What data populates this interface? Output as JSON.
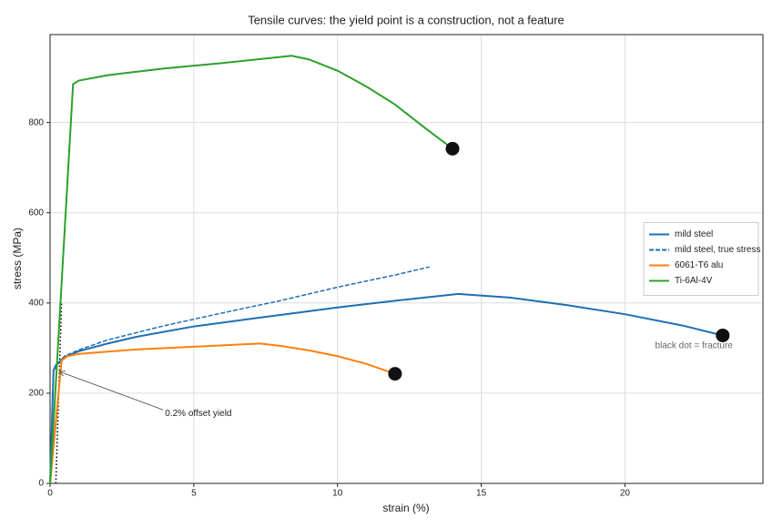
{
  "chart_data": {
    "type": "line",
    "title": "Tensile curves: the yield point is a construction, not a feature",
    "x_label": "strain (%)",
    "y_label": "stress (MPa)",
    "xlim": [
      0,
      24.8
    ],
    "ylim": [
      0,
      995
    ],
    "xticks": [
      0,
      5,
      10,
      15,
      20
    ],
    "yticks": [
      0,
      200,
      400,
      600,
      800
    ],
    "grid": true,
    "legend": "center right",
    "series": [
      {
        "name": "mild steel",
        "color": "#1f6fb2",
        "dash": false,
        "fracture_dot": true,
        "x": [
          0,
          0.12,
          0.2,
          0.5,
          1,
          2,
          3,
          5,
          7,
          10,
          12,
          14.2,
          16,
          18,
          20,
          22,
          23.4
        ],
        "values": [
          0,
          250,
          262,
          280,
          293,
          310,
          325,
          348,
          365,
          390,
          405,
          420,
          412,
          395,
          375,
          350,
          328
        ]
      },
      {
        "name": "mild steel, true stress",
        "color": "#1f6fb2",
        "dash": true,
        "fracture_dot": false,
        "x": [
          0,
          0.12,
          0.5,
          1,
          2,
          4,
          6,
          8,
          10,
          12,
          13.2
        ],
        "values": [
          0,
          250,
          282,
          296,
          318,
          350,
          378,
          405,
          435,
          462,
          480
        ]
      },
      {
        "name": "6061-T6 alu",
        "color": "#ff7f0e",
        "dash": false,
        "fracture_dot": true,
        "x": [
          0,
          0.4,
          0.6,
          1,
          3,
          5,
          7.3,
          8,
          9,
          10,
          11,
          12
        ],
        "values": [
          0,
          272,
          282,
          287,
          297,
          303,
          310,
          305,
          295,
          282,
          265,
          243
        ]
      },
      {
        "name": "Ti-6Al-4V",
        "color": "#2ca02c",
        "dash": false,
        "fracture_dot": true,
        "x": [
          0,
          0.8,
          1,
          2,
          4,
          6,
          8.4,
          9,
          10,
          11,
          12,
          13,
          14
        ],
        "values": [
          0,
          885,
          893,
          905,
          920,
          932,
          948,
          940,
          915,
          880,
          840,
          790,
          742
        ]
      }
    ],
    "offset_line": {
      "x": [
        0.2,
        0.4
      ],
      "y": [
        0,
        400
      ]
    },
    "annotations": [
      {
        "text": "0.2% offset yield",
        "x": 4.0,
        "y": 155,
        "arrow_x": 0.32,
        "arrow_y": 248
      },
      {
        "text": "black dot = fracture",
        "x": 22.4,
        "y": 305
      }
    ]
  }
}
